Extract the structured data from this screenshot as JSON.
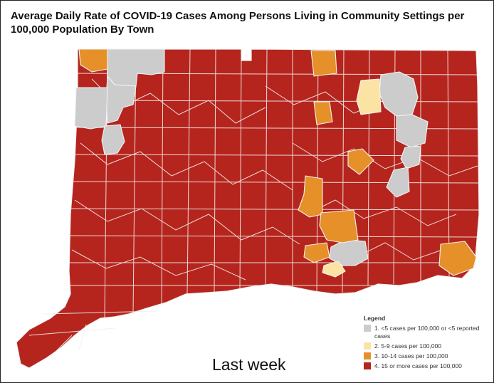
{
  "title": "Average Daily Rate of COVID-19 Cases Among Persons Living in Community Settings per 100,000 Population By Town",
  "caption": "Last week",
  "colors": {
    "red": "#b5251d",
    "gray": "#cccccc",
    "light_yellow": "#fbe3a4",
    "orange": "#e6902a",
    "town_border": "#f3f3f3"
  },
  "legend": {
    "title": "Legend",
    "items": [
      {
        "label": "1. <5 cases per 100,000 or <5 reported cases",
        "color": "#cccccc"
      },
      {
        "label": "2. 5-9 cases per 100,000",
        "color": "#fbe3a4"
      },
      {
        "label": "3. 10-14 cases per 100,000",
        "color": "#e6902a"
      },
      {
        "label": "4. 15 or more cases per 100,000",
        "color": "#b5251d"
      }
    ]
  }
}
